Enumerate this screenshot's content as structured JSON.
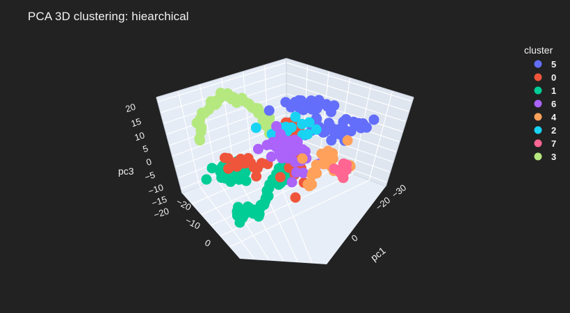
{
  "chart_data": {
    "type": "scatter",
    "dimensions": 3,
    "title": "PCA 3D clustering: hiearchical",
    "axes": {
      "x": {
        "label": "pc1",
        "ticks": [
          -30,
          -20,
          -10,
          0
        ]
      },
      "y": {
        "label": "",
        "ticks": [
          -20,
          -10,
          0
        ]
      },
      "z": {
        "label": "pc3",
        "ticks": [
          -20,
          -15,
          -10,
          -5,
          0,
          5,
          10,
          15,
          20
        ]
      }
    },
    "legend": {
      "title": "cluster",
      "placement": "right"
    },
    "series": [
      {
        "name": "5",
        "color": "#636efa"
      },
      {
        "name": "0",
        "color": "#ef553b"
      },
      {
        "name": "1",
        "color": "#00cc96"
      },
      {
        "name": "6",
        "color": "#ab63fa"
      },
      {
        "name": "4",
        "color": "#ffa15a"
      },
      {
        "name": "2",
        "color": "#19d3f3"
      },
      {
        "name": "7",
        "color": "#ff6692"
      },
      {
        "name": "3",
        "color": "#b6e880"
      }
    ],
    "colors": {
      "background": "#222222",
      "scene": "#e5ecf6",
      "text": "#f2f2f2"
    }
  }
}
